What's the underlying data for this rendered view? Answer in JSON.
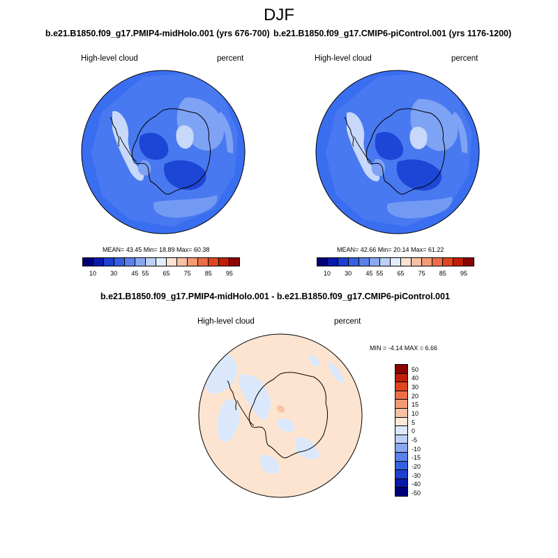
{
  "figure_title": "DJF",
  "panel_left": {
    "title": "b.e21.B1850.f09_g17.PMIP4-midHolo.001 (yrs 676-700)",
    "variable": "High-level cloud",
    "units": "percent",
    "stats": "MEAN=  43.45  Min=  18.89  Max=  60.38"
  },
  "panel_right": {
    "title": "b.e21.B1850.f09_g17.CMIP6-piControl.001 (yrs 1176-1200)",
    "variable": "High-level cloud",
    "units": "percent",
    "stats": "MEAN=  42.66  Min=  20.14  Max=  61.22"
  },
  "panel_diff": {
    "title": "b.e21.B1850.f09_g17.PMIP4-midHolo.001 - b.e21.B1850.f09_g17.CMIP6-piControl.001",
    "variable": "High-level cloud",
    "units": "percent",
    "stats": "MIN =  -4.14 MAX =   6.66"
  },
  "colorbar_abs": {
    "colors": [
      "#00007a",
      "#0a1aa8",
      "#1e3fd0",
      "#3560e0",
      "#5a80ea",
      "#8aa8f2",
      "#bcd0f8",
      "#e2ecfc",
      "#fde2d2",
      "#f8c0a4",
      "#f39a76",
      "#ec6e48",
      "#e0451e",
      "#c01e06",
      "#8a0500"
    ],
    "labels": [
      "10",
      "30",
      "45",
      "55",
      "65",
      "75",
      "85",
      "95"
    ]
  },
  "colorbar_diff": {
    "colors": [
      "#8a0500",
      "#c01e06",
      "#e0451e",
      "#ec6e48",
      "#f39a76",
      "#f8c0a4",
      "#fde8d8",
      "#dce8fb",
      "#bcd0f8",
      "#8aa8f2",
      "#5a80ea",
      "#3560e0",
      "#1e3fd0",
      "#0a1aa8",
      "#00007a"
    ],
    "labels": [
      "50",
      "40",
      "30",
      "20",
      "15",
      "10",
      "5",
      "0",
      "-5",
      "-10",
      "-15",
      "-20",
      "-30",
      "-40",
      "-50"
    ]
  },
  "map_colors": {
    "base": "#3a6ef0",
    "mid": "#5584f2",
    "light": "#7ea2f4",
    "pale": "#c7d8fa",
    "dark": "#1e46d6",
    "diff_base": "#fde4d0",
    "diff_neg": "#dbe8fc",
    "diff_pos": "#f8c4a8"
  }
}
